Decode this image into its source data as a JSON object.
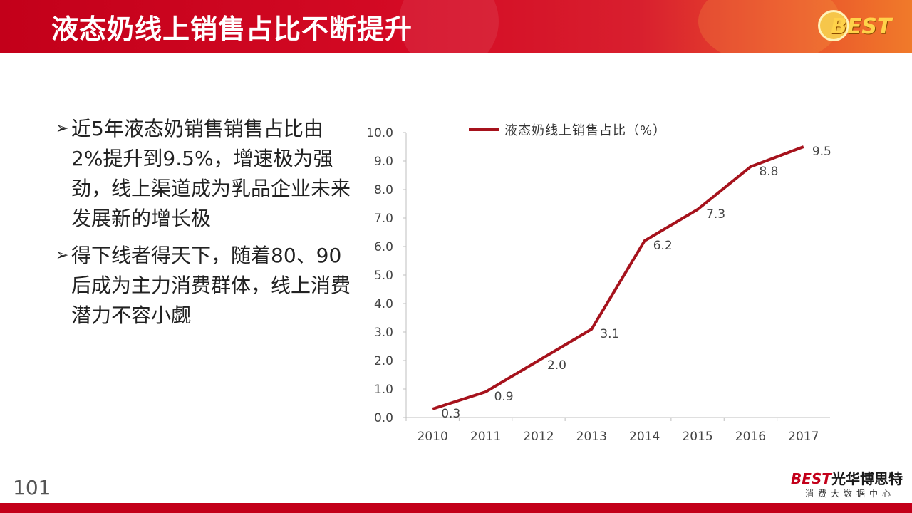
{
  "header": {
    "title": "液态奶线上销售占比不断提升",
    "logo_text": "BEST"
  },
  "bullets": [
    {
      "marker": "➢",
      "text": "近5年液态奶销售销售占比由2%提升到9.5%，增速极为强劲，线上渠道成为乳品企业未来发展新的增长极"
    },
    {
      "marker": "➢",
      "text": "得下线者得天下，随着80、90后成为主力消费群体，线上消费潜力不容小觑"
    }
  ],
  "page_number": "101",
  "footer": {
    "brand_best": "BEST",
    "brand_name": "光华博思特",
    "subtitle": "消费大数据中心"
  },
  "colors": {
    "accent": "#c3001a",
    "line": "#a6121c"
  },
  "chart_data": {
    "type": "line",
    "title": "",
    "xlabel": "",
    "ylabel": "",
    "categories": [
      "2010",
      "2011",
      "2012",
      "2013",
      "2014",
      "2015",
      "2016",
      "2017"
    ],
    "series": [
      {
        "name": "液态奶线上销售占比（%）",
        "values": [
          0.3,
          0.9,
          2.0,
          3.1,
          6.2,
          7.3,
          8.8,
          9.5
        ]
      }
    ],
    "data_labels": [
      "0.3",
      "0.9",
      "2.0",
      "3.1",
      "6.2",
      "7.3",
      "8.8",
      "9.5"
    ],
    "y_ticks": [
      "0.0",
      "1.0",
      "2.0",
      "3.0",
      "4.0",
      "5.0",
      "6.0",
      "7.0",
      "8.0",
      "9.0",
      "10.0"
    ],
    "ylim": [
      0,
      10
    ],
    "grid": false,
    "legend": "top"
  }
}
